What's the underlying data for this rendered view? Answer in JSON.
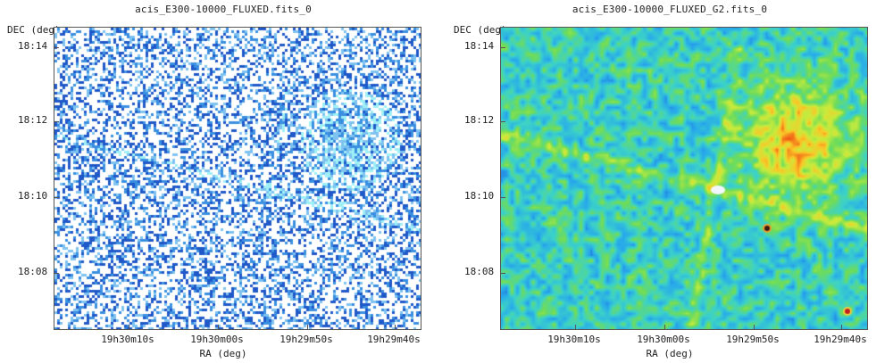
{
  "panels": [
    {
      "title": "acis_E300-10000_FLUXED.fits_0",
      "ylabel": "DEC (deg)",
      "xlabel": "RA (deg)",
      "yticks": [
        "18:14",
        "18:12",
        "18:10",
        "18:08"
      ],
      "xticks": [
        "19h30m10s",
        "19h30m00s",
        "19h29m50s",
        "19h29m40s"
      ],
      "colormap": "white-blue-cyan"
    },
    {
      "title": "acis_E300-10000_FLUXED_G2.fits_0",
      "ylabel": "DEC (deg)",
      "xlabel": "RA (deg)",
      "yticks": [
        "18:14",
        "18:12",
        "18:10",
        "18:08"
      ],
      "xticks": [
        "19h30m10s",
        "19h30m00s",
        "19h29m50s",
        "19h29m40s"
      ],
      "colormap": "blue-cyan-green-yellow-red"
    }
  ]
}
